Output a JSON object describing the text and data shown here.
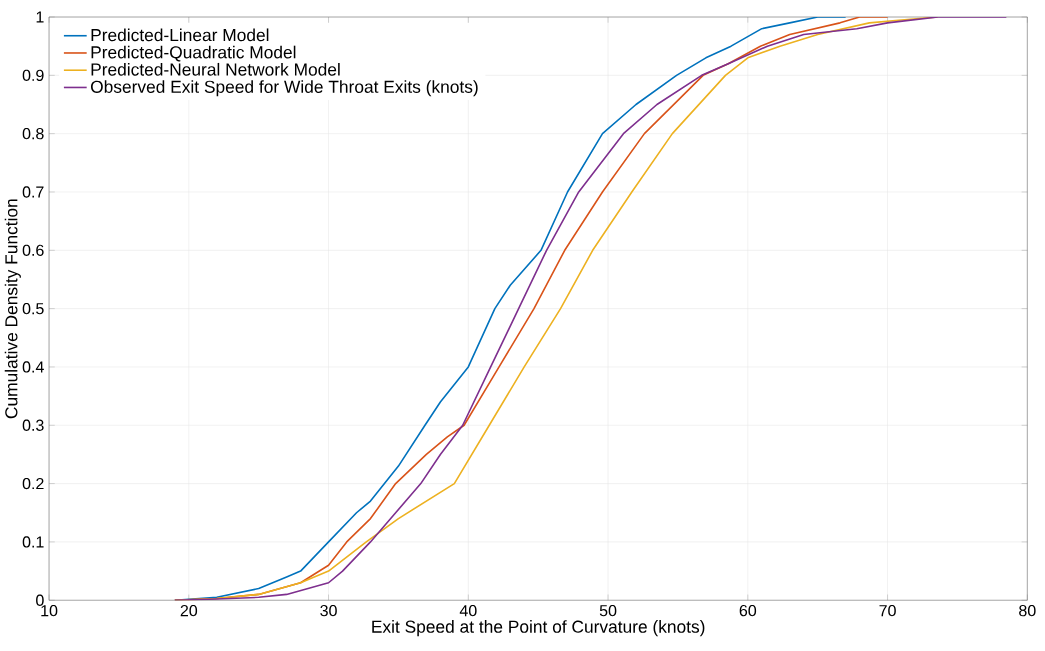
{
  "chart_data": {
    "type": "line",
    "xlabel": "Exit Speed at the Point of Curvature (knots)",
    "ylabel": "Cumulative Density Function",
    "xlim": [
      10,
      80
    ],
    "ylim": [
      0,
      1
    ],
    "xticks": [
      10,
      20,
      30,
      40,
      50,
      60,
      70,
      80
    ],
    "yticks": [
      0,
      0.1,
      0.2,
      0.3,
      0.4,
      0.5,
      0.6,
      0.7,
      0.8,
      0.9,
      1
    ],
    "grid": true,
    "legend": "top left",
    "marker": "none",
    "line_style": "solid",
    "series": [
      {
        "name": "Predicted-Linear Model",
        "color": "#0072bd",
        "x": [
          19,
          22,
          25,
          27,
          28,
          30,
          32,
          33,
          34,
          35,
          36.9,
          38,
          40,
          41.9,
          43,
          45.2,
          47.1,
          49.6,
          52,
          54.9,
          57,
          58.8,
          61,
          63,
          65,
          67
        ],
        "values": [
          0,
          0.005,
          0.02,
          0.04,
          0.05,
          0.1,
          0.15,
          0.17,
          0.2,
          0.23,
          0.3,
          0.34,
          0.4,
          0.5,
          0.54,
          0.6,
          0.7,
          0.8,
          0.85,
          0.9,
          0.93,
          0.95,
          0.98,
          0.99,
          1,
          1
        ]
      },
      {
        "name": "Predicted-Quadratic Model",
        "color": "#d95319",
        "x": [
          19,
          22,
          25,
          28,
          30,
          31.3,
          33,
          34.8,
          37,
          38.5,
          39.7,
          42.2,
          44.7,
          46.9,
          49.6,
          52.6,
          56.8,
          58.6,
          60.9,
          63,
          66.6,
          68,
          70
        ],
        "values": [
          0,
          0.003,
          0.01,
          0.03,
          0.06,
          0.1,
          0.14,
          0.2,
          0.25,
          0.28,
          0.3,
          0.4,
          0.5,
          0.6,
          0.7,
          0.8,
          0.9,
          0.92,
          0.95,
          0.97,
          0.99,
          1,
          1
        ]
      },
      {
        "name": "Predicted-Neural Network Model",
        "color": "#edb120",
        "x": [
          19,
          22,
          25,
          28,
          30,
          32.7,
          35,
          37,
          39,
          41.5,
          44,
          46.6,
          48.9,
          51.7,
          54.6,
          58.4,
          60,
          62.3,
          65,
          68.7,
          71,
          73.6
        ],
        "values": [
          0,
          0.003,
          0.01,
          0.03,
          0.05,
          0.1,
          0.14,
          0.17,
          0.2,
          0.3,
          0.4,
          0.5,
          0.6,
          0.7,
          0.8,
          0.9,
          0.93,
          0.95,
          0.97,
          0.99,
          0.995,
          1
        ]
      },
      {
        "name": "Observed Exit Speed for Wide Throat Exits (knots)",
        "color": "#7e2f8e",
        "x": [
          19,
          22,
          25,
          27,
          30,
          31,
          33,
          34.8,
          36.6,
          38,
          39.6,
          41.6,
          43.6,
          45.6,
          47.9,
          51.1,
          53.5,
          56.7,
          58.6,
          61.4,
          64,
          67.8,
          70,
          73.6,
          76,
          78.5
        ],
        "values": [
          0,
          0.002,
          0.005,
          0.01,
          0.03,
          0.05,
          0.1,
          0.15,
          0.2,
          0.25,
          0.3,
          0.4,
          0.5,
          0.6,
          0.7,
          0.8,
          0.85,
          0.9,
          0.92,
          0.95,
          0.97,
          0.98,
          0.99,
          1,
          1,
          1
        ]
      }
    ]
  }
}
